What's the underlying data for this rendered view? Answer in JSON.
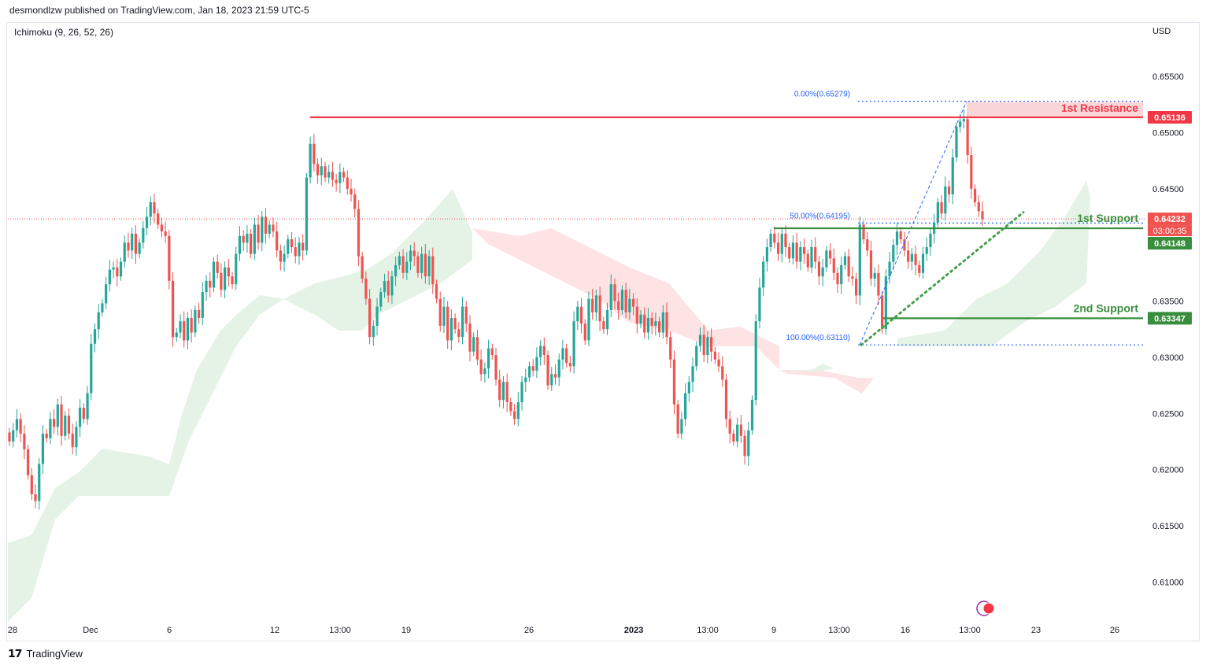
{
  "header": {
    "published": "desmondlzw published on TradingView.com, Jan 18, 2023 21:59 UTC-5",
    "indicator": "Ichimoku (9, 26, 52, 26)",
    "currency": "USD",
    "footer_brand": "TradingView"
  },
  "colors": {
    "bull": "#26a69a",
    "bear": "#ef5350",
    "resistance": "#f23645",
    "support": "#388e3c",
    "fib": "#2962ff",
    "cloud_green": "#e5f3e6",
    "cloud_red": "#fde3e3"
  },
  "chart_data": {
    "type": "candlestick",
    "y_axis": {
      "ticks": [
        "0.65500",
        "0.65000",
        "0.64500",
        "0.64000",
        "0.63500",
        "0.63000",
        "0.62500",
        "0.62000",
        "0.61500",
        "0.61000"
      ],
      "range": [
        0.6068,
        0.6576
      ]
    },
    "x_axis": {
      "ticks": [
        "28",
        "Dec",
        "6",
        "12",
        "13:00",
        "19",
        "26",
        "2023",
        "13:00",
        "9",
        "13:00",
        "16",
        "13:00",
        "23",
        "26"
      ]
    },
    "levels": [
      {
        "name": "1st Resistance",
        "value": 0.65136,
        "label": "0.65136",
        "color": "#f23645"
      },
      {
        "name": "1st Support",
        "value": 0.64148,
        "label": "0.64148",
        "color": "#388e3c"
      },
      {
        "name": "2nd Support",
        "value": 0.63347,
        "label": "0.63347",
        "color": "#388e3c"
      }
    ],
    "current_price": {
      "label": "0.64232",
      "countdown": "03:00:35",
      "value": 0.64232
    },
    "fibonacci": [
      {
        "label": "0.00%(0.65279)",
        "value": 0.65279
      },
      {
        "label": "50.00%(0.64195)",
        "value": 0.64195
      },
      {
        "label": "100.00%(0.63110)",
        "value": 0.6311
      }
    ],
    "candles_close": [
      0.6225,
      0.6235,
      0.6245,
      0.6232,
      0.6218,
      0.6195,
      0.6178,
      0.6172,
      0.6205,
      0.6232,
      0.6228,
      0.6245,
      0.6238,
      0.6258,
      0.623,
      0.6248,
      0.6232,
      0.622,
      0.6238,
      0.6255,
      0.6245,
      0.6268,
      0.6312,
      0.6325,
      0.634,
      0.6348,
      0.6365,
      0.6378,
      0.638,
      0.6372,
      0.6385,
      0.6402,
      0.6395,
      0.641,
      0.6392,
      0.6402,
      0.6415,
      0.6425,
      0.6438,
      0.6428,
      0.6418,
      0.6412,
      0.6408,
      0.6368,
      0.6318,
      0.6322,
      0.6332,
      0.6315,
      0.6335,
      0.6322,
      0.6342,
      0.6335,
      0.6358,
      0.6368,
      0.6362,
      0.6385,
      0.6375,
      0.636,
      0.638,
      0.6372,
      0.6365,
      0.6392,
      0.6408,
      0.6402,
      0.641,
      0.6392,
      0.6418,
      0.6402,
      0.6425,
      0.641,
      0.6418,
      0.6412,
      0.6395,
      0.6385,
      0.6392,
      0.6405,
      0.6398,
      0.639,
      0.6402,
      0.6395,
      0.646,
      0.649,
      0.6472,
      0.6462,
      0.647,
      0.646,
      0.6465,
      0.6458,
      0.6455,
      0.6465,
      0.646,
      0.645,
      0.6445,
      0.6432,
      0.639,
      0.637,
      0.6352,
      0.6318,
      0.6328,
      0.6345,
      0.6358,
      0.6368,
      0.6355,
      0.6372,
      0.6382,
      0.639,
      0.6375,
      0.6385,
      0.6395,
      0.639,
      0.6375,
      0.6392,
      0.6372,
      0.639,
      0.6365,
      0.6352,
      0.6328,
      0.6345,
      0.6315,
      0.6335,
      0.6325,
      0.6318,
      0.6345,
      0.633,
      0.6305,
      0.6318,
      0.6298,
      0.6285,
      0.629,
      0.6308,
      0.6302,
      0.628,
      0.6262,
      0.6278,
      0.626,
      0.6252,
      0.6245,
      0.626,
      0.6278,
      0.6282,
      0.6292,
      0.6288,
      0.63,
      0.631,
      0.6302,
      0.6275,
      0.6285,
      0.6282,
      0.6298,
      0.6308,
      0.6295,
      0.6292,
      0.6332,
      0.6345,
      0.633,
      0.6315,
      0.6352,
      0.634,
      0.6355,
      0.6332,
      0.6325,
      0.6342,
      0.6365,
      0.635,
      0.6342,
      0.636,
      0.634,
      0.6352,
      0.6345,
      0.633,
      0.6338,
      0.6322,
      0.6335,
      0.6328,
      0.6332,
      0.6322,
      0.634,
      0.6318,
      0.6298,
      0.6258,
      0.6232,
      0.6245,
      0.6268,
      0.6278,
      0.6292,
      0.631,
      0.632,
      0.6302,
      0.6318,
      0.6305,
      0.6298,
      0.6292,
      0.628,
      0.6245,
      0.6232,
      0.6225,
      0.624,
      0.623,
      0.6212,
      0.6235,
      0.6262,
      0.6332,
      0.6362,
      0.6385,
      0.6398,
      0.641,
      0.6402,
      0.6392,
      0.641,
      0.6398,
      0.6388,
      0.6402,
      0.6385,
      0.6398,
      0.6392,
      0.638,
      0.6398,
      0.6385,
      0.6372,
      0.638,
      0.6395,
      0.6388,
      0.6375,
      0.6365,
      0.6382,
      0.639,
      0.6372,
      0.637,
      0.6355,
      0.6418,
      0.6405,
      0.6395,
      0.637,
      0.6375,
      0.6355,
      0.6325,
      0.6372,
      0.6385,
      0.64,
      0.6412,
      0.6405,
      0.6395,
      0.6385,
      0.6392,
      0.6382,
      0.6375,
      0.6392,
      0.6398,
      0.641,
      0.642,
      0.6438,
      0.6428,
      0.6452,
      0.6445,
      0.6478,
      0.6505,
      0.651,
      0.6512,
      0.648,
      0.645,
      0.6438,
      0.643,
      0.6423
    ]
  }
}
